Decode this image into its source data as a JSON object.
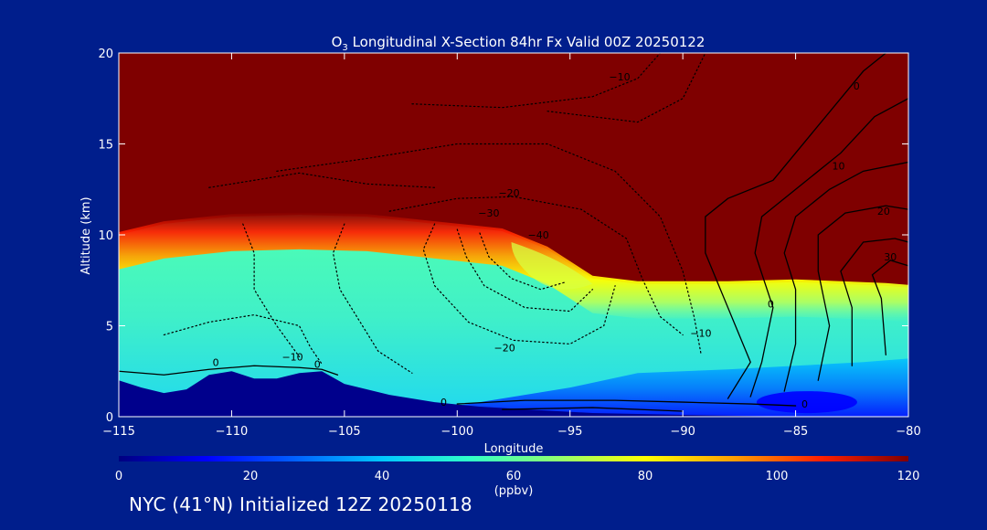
{
  "title": {
    "species": "O",
    "subscript": "3",
    "rest": " Longitudinal X-Section 84hr  Fx Valid 00Z 20250122"
  },
  "footer": "NYC (41°N) Initialized 12Z 20250118",
  "colors": {
    "background": "#001e8c",
    "colormap": [
      "#00007f",
      "#0000ff",
      "#0060ff",
      "#00c8ff",
      "#30ffc8",
      "#90ff70",
      "#ffff00",
      "#ffa000",
      "#ff2000",
      "#7f0000"
    ]
  },
  "chart_data": {
    "type": "heatmap",
    "subtype": "vertical cross-section with contour overlay",
    "xlabel": "Longitude",
    "ylabel": "Altitude (km)",
    "xlim": [
      -115,
      -80
    ],
    "ylim": [
      0,
      20
    ],
    "xticks": [
      -115,
      -110,
      -105,
      -100,
      -95,
      -90,
      -85,
      -80
    ],
    "xtick_labels": [
      "−115",
      "−110",
      "−105",
      "−100",
      "−95",
      "−90",
      "−85",
      "−80"
    ],
    "yticks": [
      0,
      5,
      10,
      15,
      20
    ],
    "ytick_labels": [
      "0",
      "5",
      "10",
      "15",
      "20"
    ],
    "colorbar": {
      "label": "(ppbv)",
      "range": [
        0,
        120
      ],
      "ticks": [
        0,
        20,
        40,
        60,
        80,
        100,
        120
      ]
    },
    "tropopause_height_km": [
      [
        -115,
        10.0
      ],
      [
        -113,
        10.6
      ],
      [
        -110,
        11.0
      ],
      [
        -107,
        11.1
      ],
      [
        -104,
        11.0
      ],
      [
        -101,
        10.6
      ],
      [
        -98,
        10.2
      ],
      [
        -96,
        9.2
      ],
      [
        -94,
        7.6
      ],
      [
        -92,
        7.3
      ],
      [
        -88,
        7.3
      ],
      [
        -85,
        7.4
      ],
      [
        -83,
        7.3
      ],
      [
        -81,
        7.2
      ],
      [
        -80,
        7.1
      ]
    ],
    "terrain_height_km": [
      [
        -115,
        2.0
      ],
      [
        -114,
        1.6
      ],
      [
        -113,
        1.3
      ],
      [
        -112,
        1.5
      ],
      [
        -111,
        2.3
      ],
      [
        -110,
        2.5
      ],
      [
        -109,
        2.1
      ],
      [
        -108,
        2.1
      ],
      [
        -107,
        2.4
      ],
      [
        -106,
        2.5
      ],
      [
        -105,
        1.8
      ],
      [
        -103,
        1.2
      ],
      [
        -101,
        0.8
      ],
      [
        -99,
        0.55
      ],
      [
        -97,
        0.4
      ],
      [
        -94,
        0.2
      ],
      [
        -90,
        0.1
      ],
      [
        -85,
        0.0
      ],
      [
        -80,
        0.0
      ]
    ],
    "contour_labels": [
      {
        "value": "0",
        "x": -110.7,
        "y": 2.8
      },
      {
        "value": "−10",
        "x": -107.3,
        "y": 3.1
      },
      {
        "value": "0",
        "x": -106.2,
        "y": 2.7
      },
      {
        "value": "0",
        "x": -100.6,
        "y": 0.6
      },
      {
        "value": "−20",
        "x": -97.9,
        "y": 3.6
      },
      {
        "value": "−10",
        "x": -89.2,
        "y": 4.4
      },
      {
        "value": "0",
        "x": -86.1,
        "y": 6.0
      },
      {
        "value": "0",
        "x": -84.6,
        "y": 0.5
      },
      {
        "value": "−20",
        "x": -97.7,
        "y": 12.1
      },
      {
        "value": "−30",
        "x": -98.6,
        "y": 11.0
      },
      {
        "value": "−40",
        "x": -96.4,
        "y": 9.8
      },
      {
        "value": "−10",
        "x": -92.8,
        "y": 18.5
      },
      {
        "value": "0",
        "x": -82.3,
        "y": 18.0
      },
      {
        "value": "10",
        "x": -83.1,
        "y": 13.6
      },
      {
        "value": "20",
        "x": -81.1,
        "y": 11.1
      },
      {
        "value": "30",
        "x": -80.8,
        "y": 8.6
      }
    ]
  }
}
